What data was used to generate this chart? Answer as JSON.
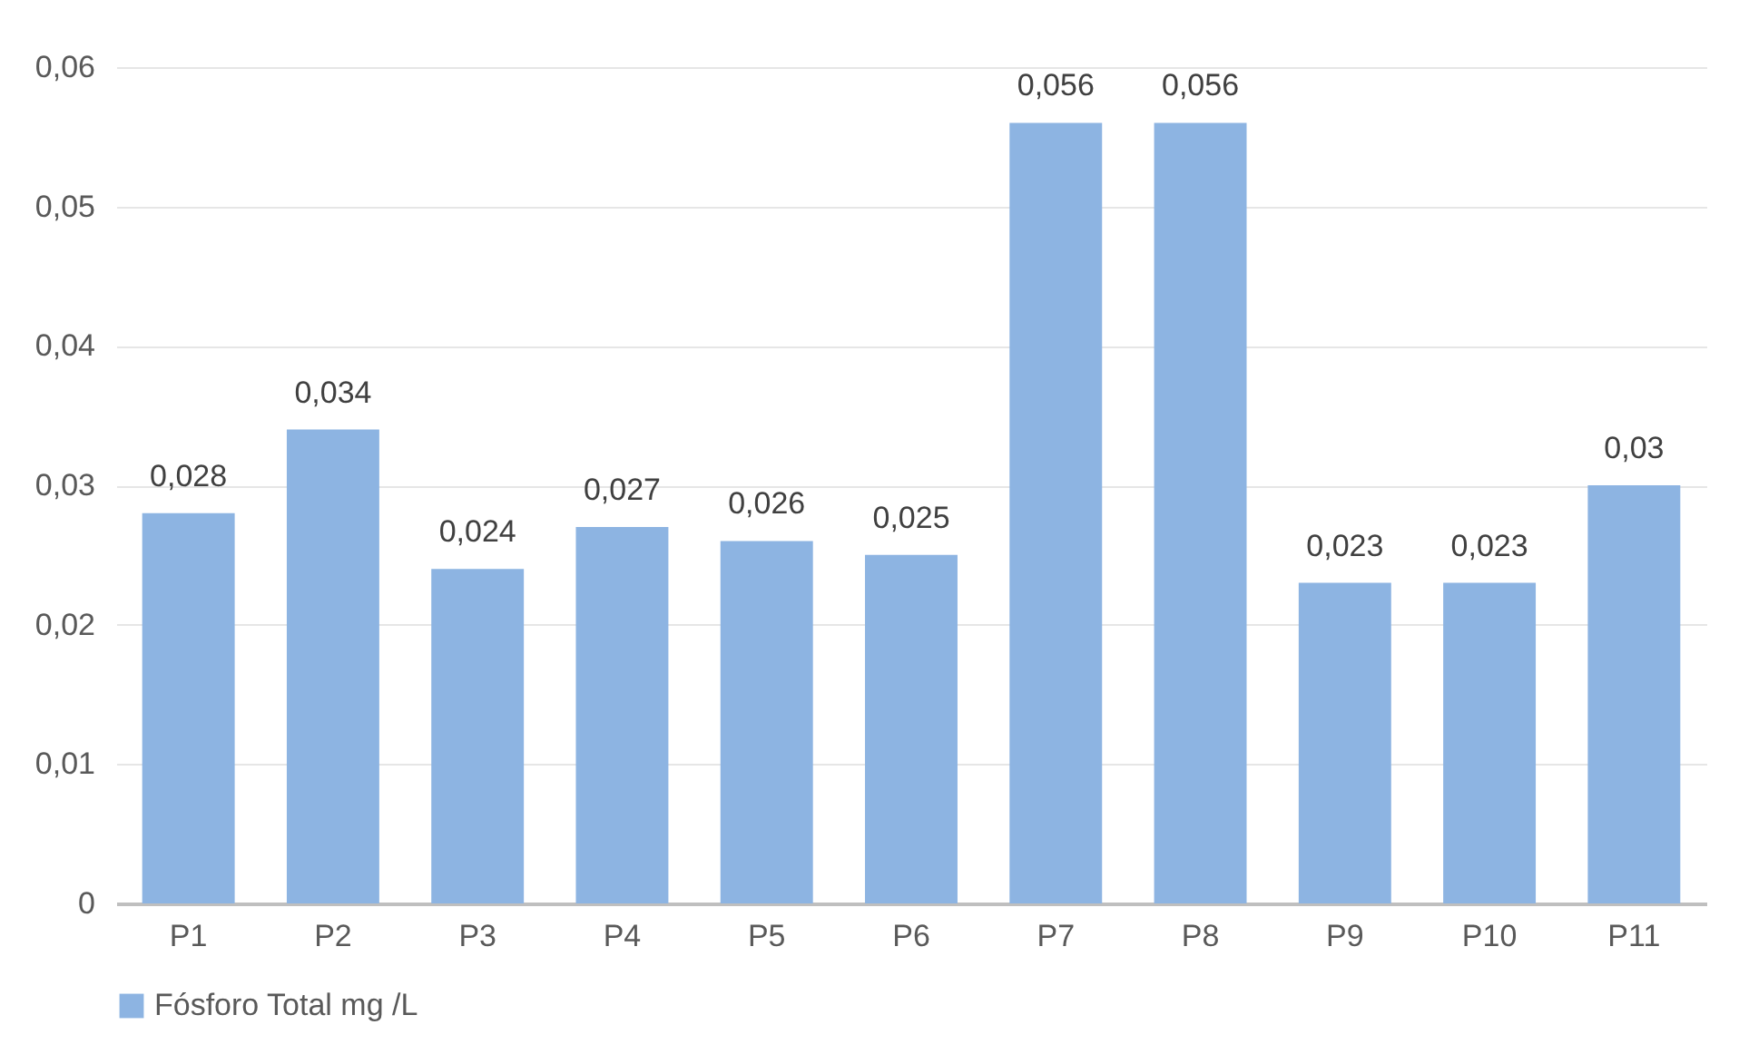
{
  "chart_data": {
    "type": "bar",
    "categories": [
      "P1",
      "P2",
      "P3",
      "P4",
      "P5",
      "P6",
      "P7",
      "P8",
      "P9",
      "P10",
      "P11"
    ],
    "series": [
      {
        "name": "Fósforo Total  mg /L",
        "color": "#8db4e2",
        "values": [
          0.028,
          0.034,
          0.024,
          0.027,
          0.026,
          0.025,
          0.056,
          0.056,
          0.023,
          0.023,
          0.03
        ],
        "value_labels": [
          "0,028",
          "0,034",
          "0,024",
          "0,027",
          "0,026",
          "0,025",
          "0,056",
          "0,056",
          "0,023",
          "0,023",
          "0,03"
        ]
      }
    ],
    "ylim": [
      0,
      0.06
    ],
    "yticks": [
      {
        "value": 0,
        "label": "0"
      },
      {
        "value": 0.01,
        "label": "0,01"
      },
      {
        "value": 0.02,
        "label": "0,02"
      },
      {
        "value": 0.03,
        "label": "0,03"
      },
      {
        "value": 0.04,
        "label": "0,04"
      },
      {
        "value": 0.05,
        "label": "0,05"
      },
      {
        "value": 0.06,
        "label": "0,06"
      }
    ],
    "grid": "y",
    "legend": "bottom"
  }
}
